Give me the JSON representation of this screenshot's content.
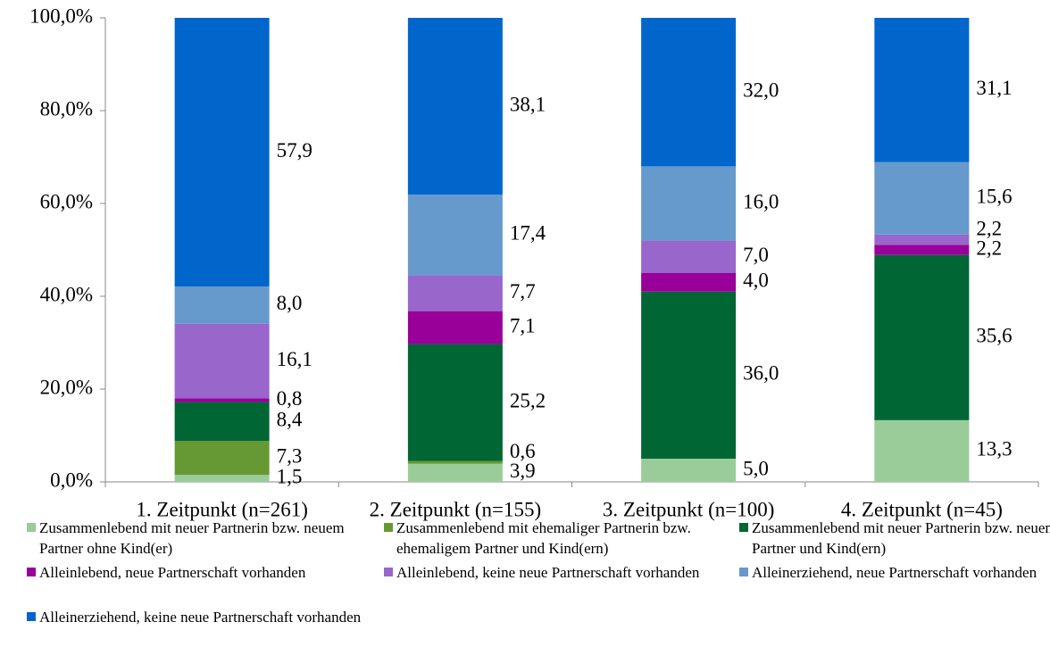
{
  "chart_data": {
    "type": "stacked_bar",
    "categories": [
      "1. Zeitpunkt (n=261)",
      "2. Zeitpunkt (n=155)",
      "3. Zeitpunkt (n=100)",
      "4. Zeitpunkt (n=45)"
    ],
    "series": [
      {
        "name": "Zusammenlebend mit neuer Partnerin bzw. neuem Partner ohne Kind(er)",
        "color": "#99cc99",
        "values": [
          1.5,
          3.9,
          5.0,
          13.3
        ],
        "value_labels": [
          "1,5",
          "3,9",
          "5,0",
          "13,3"
        ]
      },
      {
        "name": "Zusammenlebend mit ehemaliger Partnerin bzw. ehemaligem Partner und Kind(ern)",
        "color": "#669933",
        "values": [
          7.3,
          0.6,
          null,
          null
        ],
        "value_labels": [
          "7,3",
          "0,6",
          null,
          null
        ]
      },
      {
        "name": "Zusammenlebend mit neuer Partnerin bzw. neuem Partner und Kind(ern)",
        "color": "#006633",
        "values": [
          8.4,
          25.2,
          36.0,
          35.6
        ],
        "value_labels": [
          "8,4",
          "25,2",
          "36,0",
          "35,6"
        ]
      },
      {
        "name": "Alleinlebend, neue Partnerschaft vorhanden",
        "color": "#990099",
        "values": [
          0.8,
          7.1,
          4.0,
          2.2
        ],
        "value_labels": [
          "0,8",
          "7,1",
          "4,0",
          "2,2"
        ]
      },
      {
        "name": "Alleinlebend, keine neue Partnerschaft vorhanden",
        "color": "#9966cc",
        "values": [
          16.1,
          7.7,
          7.0,
          2.2
        ],
        "value_labels": [
          "16,1",
          "7,7",
          "7,0",
          "2,2"
        ]
      },
      {
        "name": "Alleinerziehend, neue Partnerschaft vorhanden",
        "color": "#6699cc",
        "values": [
          8.0,
          17.4,
          16.0,
          15.6
        ],
        "value_labels": [
          "8,0",
          "17,4",
          "16,0",
          "15,6"
        ]
      },
      {
        "name": "Alleinerziehend, keine neue Partnerschaft vorhanden",
        "color": "#0066cc",
        "values": [
          57.9,
          38.1,
          32.0,
          31.1
        ],
        "value_labels": [
          "57,9",
          "38,1",
          "32,0",
          "31,1"
        ]
      }
    ],
    "ylim": [
      0,
      100
    ],
    "yticks": [
      {
        "value": 0,
        "label": "0,0%"
      },
      {
        "value": 20,
        "label": "20,0%"
      },
      {
        "value": 40,
        "label": "40,0%"
      },
      {
        "value": 60,
        "label": "60,0%"
      },
      {
        "value": 80,
        "label": "80,0%"
      },
      {
        "value": 100,
        "label": "100,0%"
      }
    ],
    "legend": "bottom"
  }
}
